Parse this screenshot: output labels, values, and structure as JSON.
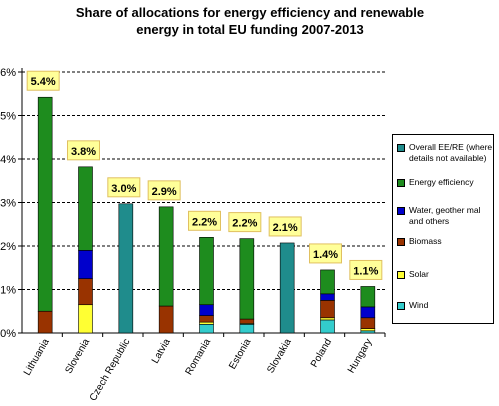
{
  "chart_data": {
    "type": "bar",
    "stacked": true,
    "title_lines": [
      "Share of allocations for energy efficiency and renewable",
      "energy in total EU funding 2007-2013"
    ],
    "xlabel": "",
    "ylabel": "",
    "ylim": [
      0,
      6
    ],
    "yticks": [
      "0%",
      "1%",
      "2%",
      "3%",
      "4%",
      "5%",
      "6%"
    ],
    "grid": "dashed horizontal",
    "legend_position": "right",
    "categories": [
      "Lithuania",
      "Slovenia",
      "Czech Republic",
      "Latvia",
      "Romania",
      "Estonia",
      "Slovakia",
      "Poland",
      "Hungary"
    ],
    "series": [
      {
        "name": "Wind",
        "color": "#33CCCC",
        "values": [
          0,
          0,
          0,
          0,
          0.2,
          0.2,
          0,
          0.3,
          0.05
        ]
      },
      {
        "name": "Solar",
        "color": "#FFFF33",
        "values": [
          0,
          0.65,
          0,
          0,
          0.05,
          0.02,
          0,
          0.05,
          0.05
        ]
      },
      {
        "name": "Biomass",
        "color": "#993300",
        "values": [
          0.5,
          0.6,
          0,
          0.62,
          0.15,
          0.1,
          0,
          0.4,
          0.25
        ]
      },
      {
        "name": "Water, geother mal and others",
        "color": "#0000CC",
        "values": [
          0,
          0.65,
          0,
          0,
          0.25,
          0,
          0,
          0.15,
          0.25
        ]
      },
      {
        "name": "Energy efficiency",
        "color": "#1E8C1E",
        "values": [
          4.92,
          1.92,
          0,
          2.28,
          1.55,
          1.85,
          0,
          0.55,
          0.47
        ]
      },
      {
        "name": "Overall EE/RE (where details not available)",
        "color": "#1F8C8C",
        "values": [
          0,
          0,
          2.97,
          0,
          0,
          0,
          2.07,
          0,
          0
        ]
      }
    ],
    "totals_labels": [
      "5.4%",
      "3.8%",
      "3.0%",
      "2.9%",
      "2.2%",
      "2.2%",
      "2.1%",
      "1.4%",
      "1.1%"
    ],
    "legend_order": [
      "Overall EE/RE (where details not available)",
      "Energy efficiency",
      "Water, geother mal and others",
      "Biomass",
      "Solar",
      "Wind"
    ]
  }
}
